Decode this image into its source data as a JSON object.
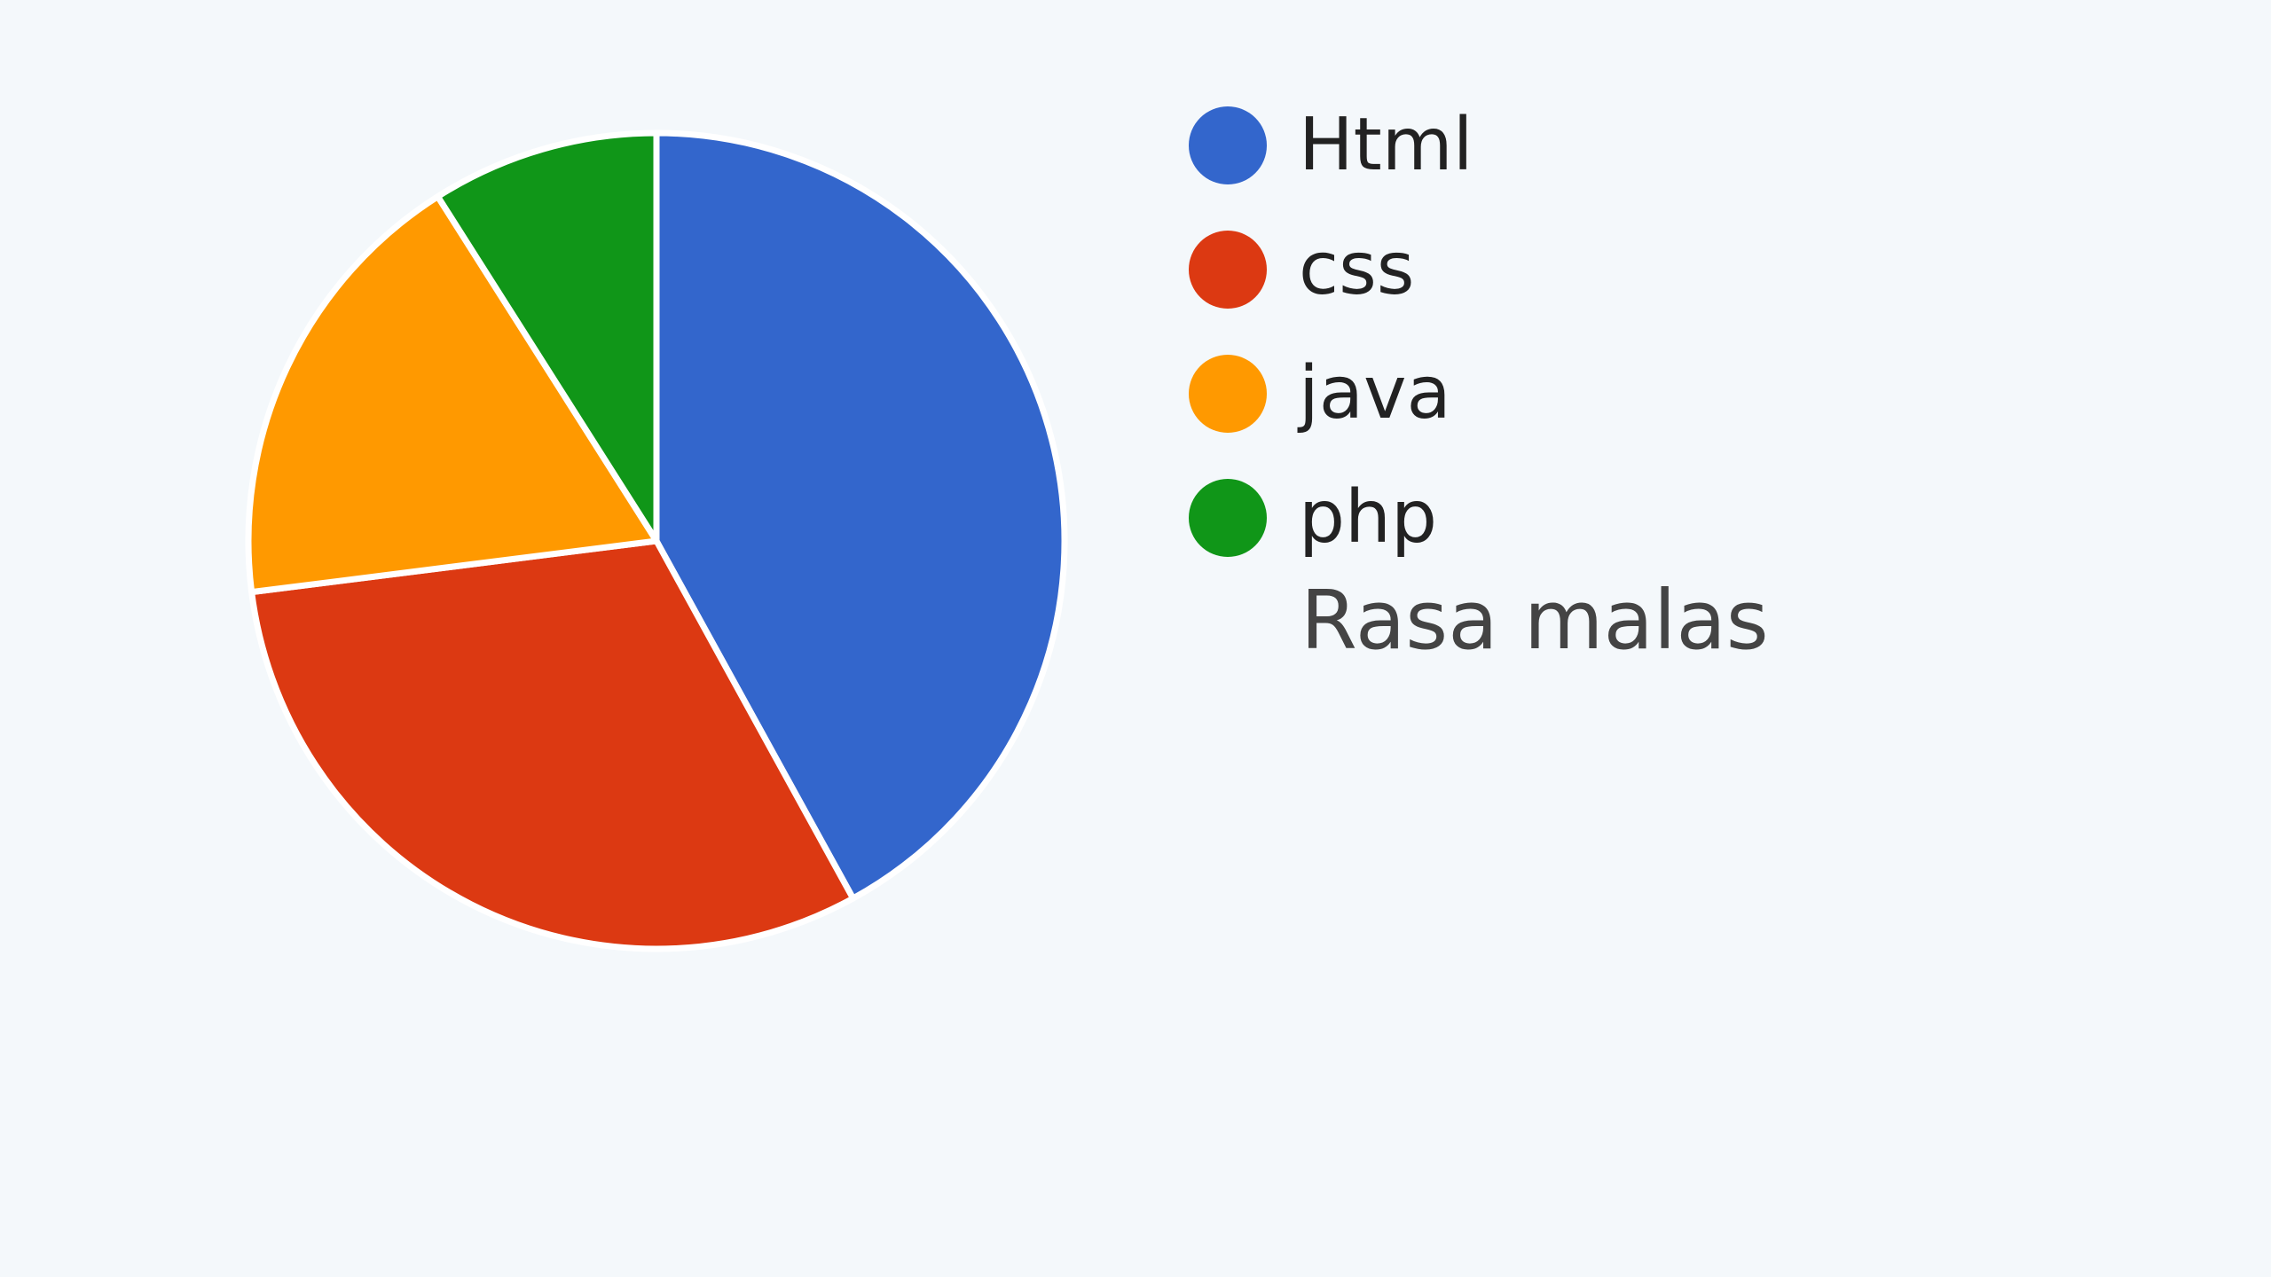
{
  "chart_data": {
    "type": "pie",
    "title": "",
    "slices": [
      {
        "label": "Html",
        "value": 42,
        "color": "#3366cc"
      },
      {
        "label": "css",
        "value": 31,
        "color": "#dc3912"
      },
      {
        "label": "java",
        "value": 18,
        "color": "#ff9900"
      },
      {
        "label": "php",
        "value": 9,
        "color": "#109618"
      }
    ],
    "legend_placement": "right",
    "extra_legend_text": "Rasa malas"
  }
}
